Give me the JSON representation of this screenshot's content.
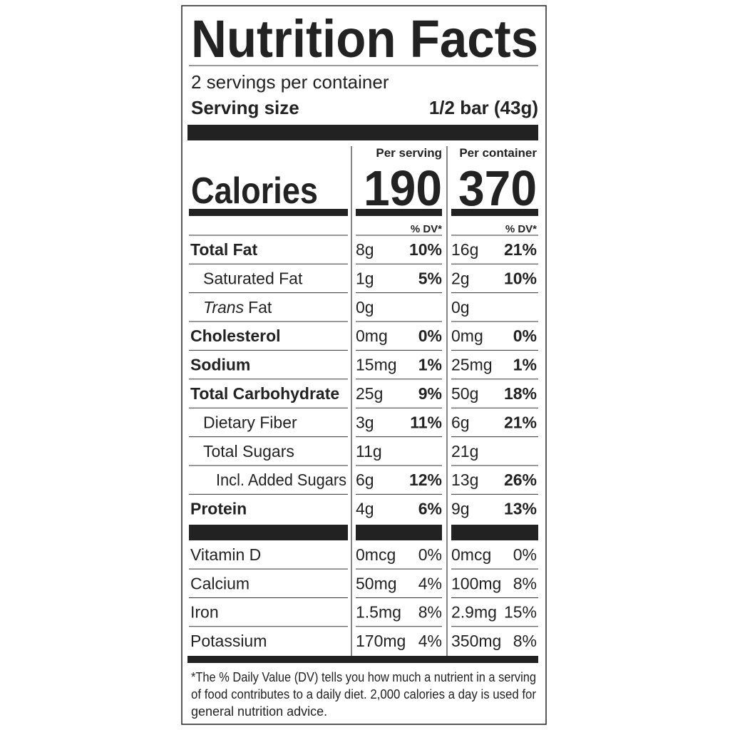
{
  "title": "Nutrition Facts",
  "servings": "2 servings per container",
  "serving_size": {
    "label": "Serving size",
    "value": "1/2 bar (43g)"
  },
  "calories": {
    "label": "Calories",
    "columns": [
      {
        "heading": "Per serving",
        "value": "190"
      },
      {
        "heading": "Per container",
        "value": "370"
      }
    ]
  },
  "dv_header": [
    "% DV*",
    "% DV*"
  ],
  "nutrients": [
    {
      "name": "Total Fat",
      "bold": true,
      "indent": 0,
      "serving": [
        "8g",
        "10%"
      ],
      "container": [
        "16g",
        "21%"
      ]
    },
    {
      "name": "Saturated Fat",
      "bold": false,
      "indent": 1,
      "serving": [
        "1g",
        "5%"
      ],
      "container": [
        "2g",
        "10%"
      ]
    },
    {
      "name_italic": "Trans",
      "name": "Fat",
      "bold": false,
      "indent": 1,
      "serving": [
        "0g"
      ],
      "container": [
        "0g"
      ]
    },
    {
      "name": "Cholesterol",
      "bold": true,
      "indent": 0,
      "serving": [
        "0mg",
        "0%"
      ],
      "container": [
        "0mg",
        "0%"
      ]
    },
    {
      "name": "Sodium",
      "bold": true,
      "indent": 0,
      "serving": [
        "15mg",
        "1%"
      ],
      "container": [
        "25mg",
        "1%"
      ]
    },
    {
      "name": "Total Carbohydrate",
      "bold": true,
      "indent": 0,
      "serving": [
        "25g",
        "9%"
      ],
      "container": [
        "50g",
        "18%"
      ]
    },
    {
      "name": "Dietary Fiber",
      "bold": false,
      "indent": 1,
      "serving": [
        "3g",
        "11%"
      ],
      "container": [
        "6g",
        "21%"
      ]
    },
    {
      "name": "Total Sugars",
      "bold": false,
      "indent": 1,
      "serving": [
        "11g"
      ],
      "container": [
        "21g"
      ]
    },
    {
      "name": "Incl. Added Sugars",
      "bold": false,
      "indent": 2,
      "serving": [
        "6g",
        "12%"
      ],
      "container": [
        "13g",
        "26%"
      ]
    },
    {
      "name": "Protein",
      "bold": true,
      "indent": 0,
      "serving": [
        "4g",
        "6%"
      ],
      "container": [
        "9g",
        "13%"
      ]
    }
  ],
  "vitamins": [
    {
      "name": "Vitamin D",
      "serving": [
        "0mcg",
        "0%"
      ],
      "container": [
        "0mcg",
        "0%"
      ]
    },
    {
      "name": "Calcium",
      "serving": [
        "50mg",
        "4%"
      ],
      "container": [
        "100mg",
        "8%"
      ]
    },
    {
      "name": "Iron",
      "serving": [
        "1.5mg",
        "8%"
      ],
      "container": [
        "2.9mg",
        "15%"
      ]
    },
    {
      "name": "Potassium",
      "serving": [
        "170mg",
        "4%"
      ],
      "container": [
        "350mg",
        "8%"
      ]
    }
  ],
  "footnote": [
    "*The % Daily Value (DV) tells you how much a nutrient in a serving",
    "of food contributes to a daily diet. 2,000 calories a day is used for",
    "general nutrition advice."
  ]
}
